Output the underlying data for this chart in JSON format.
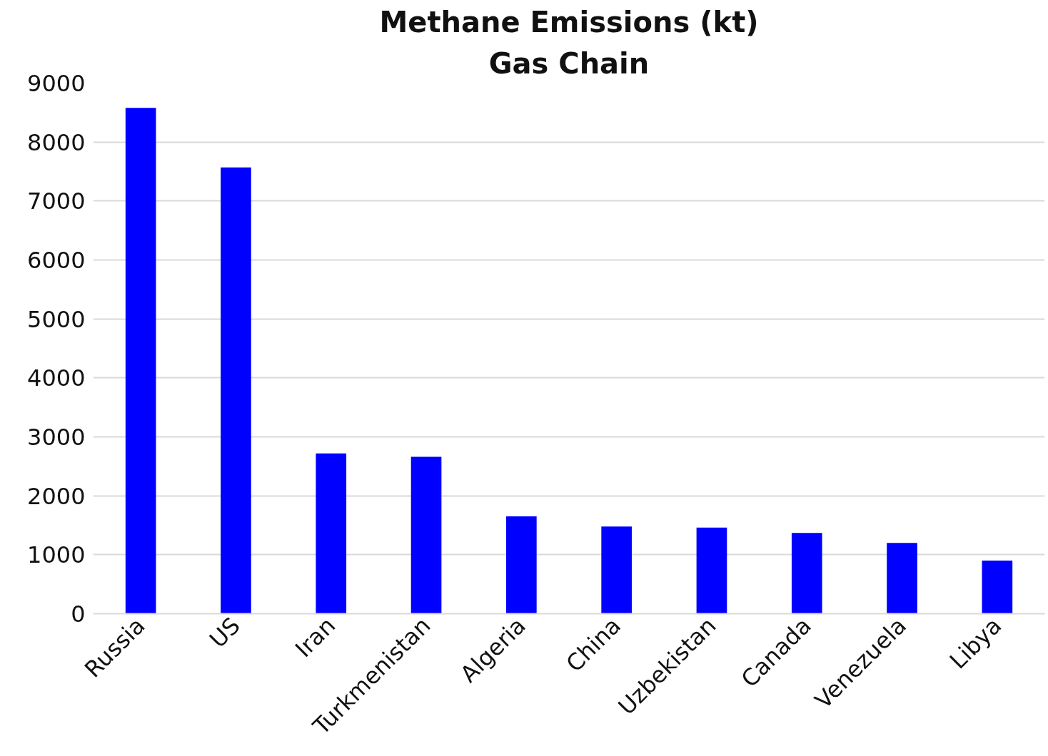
{
  "chart_data": {
    "type": "bar",
    "title": "Methane Emissions (kt)",
    "subtitle": "Gas Chain",
    "categories": [
      "Russia",
      "US",
      "Iran",
      "Turkmenistan",
      "Algeria",
      "China",
      "Uzbekistan",
      "Canada",
      "Venezuela",
      "Libya"
    ],
    "values": [
      8580,
      7570,
      2720,
      2660,
      1650,
      1480,
      1460,
      1370,
      1200,
      900
    ],
    "color": "#0000ff",
    "ylim": [
      0,
      9000
    ],
    "yticks": [
      0,
      1000,
      2000,
      3000,
      4000,
      5000,
      6000,
      7000,
      8000,
      9000
    ],
    "grid": "y"
  }
}
